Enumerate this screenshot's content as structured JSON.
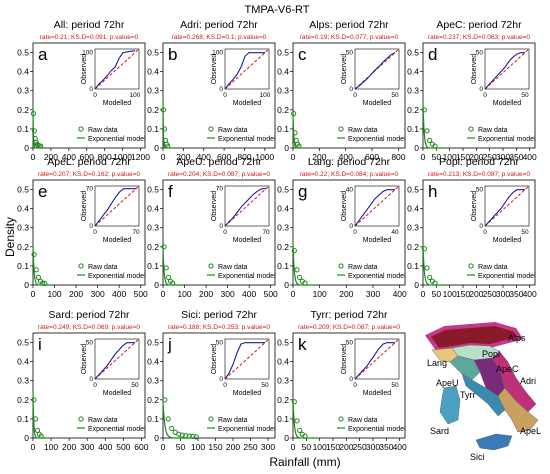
{
  "figure": {
    "title": "TMPA-V6-RT",
    "ylabel": "Density",
    "xlabel": "Rainfall (mm)",
    "inset_xlabel": "Modelled",
    "inset_ylabel": "Observed",
    "legend_raw": "Raw data",
    "legend_model": "Exponential model",
    "colors": {
      "raw": "#1a8a1a",
      "model": "#1a8a1a",
      "observed_line": "#1a1aa0",
      "ref_line": "#cc1a1a",
      "stats": "#cc1a1a"
    }
  },
  "chart_data": [
    {
      "letter": "a",
      "title": "All: period 72hr",
      "stats": "rate=0.21; KS.D=0.091; p.value=0",
      "type": "scatter",
      "xticks": [
        0,
        200,
        400,
        600,
        800,
        1000,
        1200
      ],
      "xlim": [
        0,
        1250
      ],
      "yticks": [
        0,
        0.1,
        0.2,
        0.3,
        0.4,
        0.5
      ],
      "ylim": [
        0,
        0.55
      ],
      "points_x": [
        5,
        15,
        25,
        35,
        45,
        55,
        70,
        85
      ],
      "points_y": [
        0.18,
        0.09,
        0.05,
        0.03,
        0.02,
        0.015,
        0.012,
        0.01
      ],
      "model_rate": 0.21,
      "inset": {
        "xticks": [
          0,
          100
        ],
        "xlim": [
          0,
          110
        ],
        "yticks": [
          0,
          100
        ],
        "ylim": [
          0,
          110
        ],
        "observed_x": [
          0,
          10,
          20,
          30,
          40,
          50,
          60,
          70,
          80,
          90,
          100
        ],
        "observed_y": [
          0,
          14,
          24,
          36,
          50,
          60,
          84,
          100,
          102,
          104,
          105
        ]
      }
    },
    {
      "letter": "b",
      "title": "Adri: period 72hr",
      "stats": "rate=0.268; KS.D=0.1; p.value=0",
      "type": "scatter",
      "xticks": [
        0,
        200,
        400,
        600,
        800,
        1000
      ],
      "xlim": [
        0,
        1100
      ],
      "yticks": [
        0,
        0.1,
        0.2,
        0.3,
        0.4,
        0.5
      ],
      "ylim": [
        0,
        0.55
      ],
      "points_x": [
        5,
        15,
        25,
        35,
        45
      ],
      "points_y": [
        0.2,
        0.1,
        0.04,
        0.02,
        0.01
      ],
      "model_rate": 0.268,
      "inset": {
        "xticks": [
          0,
          100
        ],
        "xlim": [
          0,
          110
        ],
        "yticks": [
          0,
          100
        ],
        "ylim": [
          0,
          110
        ],
        "observed_x": [
          0,
          10,
          20,
          30,
          40,
          50,
          60,
          70,
          80,
          90,
          100
        ],
        "observed_y": [
          0,
          14,
          26,
          40,
          60,
          90,
          100,
          100,
          100,
          100,
          100
        ]
      }
    },
    {
      "letter": "c",
      "title": "Alps: period 72hr",
      "stats": "rate=0.19; KS.D=0.077; p.value=0",
      "type": "scatter",
      "xticks": [
        0,
        200,
        400,
        600,
        800
      ],
      "xlim": [
        0,
        850
      ],
      "yticks": [
        0,
        0.1,
        0.2,
        0.3,
        0.4,
        0.5
      ],
      "ylim": [
        0,
        0.55
      ],
      "points_x": [
        5,
        15,
        25,
        35,
        45
      ],
      "points_y": [
        0.18,
        0.08,
        0.04,
        0.02,
        0.01
      ],
      "model_rate": 0.19,
      "inset": {
        "xticks": [
          0,
          50
        ],
        "xlim": [
          0,
          55
        ],
        "yticks": [
          0,
          50
        ],
        "ylim": [
          0,
          55
        ],
        "observed_x": [
          0,
          5,
          10,
          15,
          20,
          25,
          30,
          35,
          40,
          45,
          50
        ],
        "observed_y": [
          0,
          4,
          9,
          14,
          20,
          26,
          31,
          37,
          42,
          47,
          50
        ]
      }
    },
    {
      "letter": "d",
      "title": "ApeC: period 72hr",
      "stats": "rate=0.237; KS.D=0.063; p.value=0",
      "type": "scatter",
      "xticks": [
        0,
        50,
        100,
        150,
        200,
        250,
        300,
        350,
        400
      ],
      "xlim": [
        0,
        420
      ],
      "yticks": [
        0,
        0.1,
        0.2,
        0.3,
        0.4,
        0.5
      ],
      "ylim": [
        0,
        0.55
      ],
      "points_x": [
        5,
        15,
        25,
        35,
        45
      ],
      "points_y": [
        0.2,
        0.09,
        0.04,
        0.02,
        0.01
      ],
      "model_rate": 0.237,
      "inset": {
        "xticks": [
          0,
          50
        ],
        "xlim": [
          0,
          55
        ],
        "yticks": [
          0,
          50
        ],
        "ylim": [
          0,
          55
        ],
        "observed_x": [
          0,
          5,
          10,
          15,
          20,
          25,
          30,
          35,
          40,
          45,
          50
        ],
        "observed_y": [
          0,
          6,
          12,
          18,
          24,
          30,
          38,
          44,
          48,
          50,
          50
        ]
      }
    },
    {
      "letter": "e",
      "title": "ApeL: period 72hr",
      "stats": "rate=0.207; KS.D=0.162; p.value=0",
      "type": "scatter",
      "xticks": [
        0,
        100,
        200,
        300,
        400,
        500
      ],
      "xlim": [
        0,
        520
      ],
      "yticks": [
        0,
        0.1,
        0.2,
        0.3,
        0.4,
        0.5
      ],
      "ylim": [
        0,
        0.55
      ],
      "points_x": [
        5,
        15,
        25,
        35,
        45,
        55
      ],
      "points_y": [
        0.16,
        0.08,
        0.04,
        0.02,
        0.01,
        0.008
      ],
      "model_rate": 0.207,
      "inset": {
        "xticks": [
          0,
          70
        ],
        "xlim": [
          0,
          75
        ],
        "yticks": [
          0,
          70
        ],
        "ylim": [
          0,
          75
        ],
        "observed_x": [
          0,
          7,
          14,
          21,
          28,
          35,
          42,
          49,
          56,
          63,
          70
        ],
        "observed_y": [
          0,
          10,
          20,
          30,
          42,
          54,
          64,
          70,
          70,
          70,
          70
        ]
      }
    },
    {
      "letter": "f",
      "title": "ApeU: period 72hr",
      "stats": "rate=0.204; KS.D=0.087; p.value=0",
      "type": "scatter",
      "xticks": [
        0,
        100,
        200,
        300,
        400,
        500
      ],
      "xlim": [
        0,
        520
      ],
      "yticks": [
        0,
        0.1,
        0.2,
        0.3,
        0.4,
        0.5
      ],
      "ylim": [
        0,
        0.55
      ],
      "points_x": [
        5,
        15,
        25,
        35,
        45
      ],
      "points_y": [
        0.2,
        0.09,
        0.04,
        0.02,
        0.01
      ],
      "model_rate": 0.204,
      "inset": {
        "xticks": [
          0,
          70
        ],
        "xlim": [
          0,
          75
        ],
        "yticks": [
          0,
          70
        ],
        "ylim": [
          0,
          75
        ],
        "observed_x": [
          0,
          7,
          14,
          21,
          28,
          35,
          42,
          49,
          56,
          63,
          70
        ],
        "observed_y": [
          0,
          8,
          16,
          26,
          36,
          44,
          52,
          60,
          66,
          70,
          70
        ]
      }
    },
    {
      "letter": "g",
      "title": "Lang: period 72hr",
      "stats": "rate=0.22; KS.D=0.084; p.value=0",
      "type": "scatter",
      "xticks": [
        0,
        100,
        200,
        300,
        400
      ],
      "xlim": [
        0,
        420
      ],
      "yticks": [
        0,
        0.1,
        0.2,
        0.3,
        0.4,
        0.5
      ],
      "ylim": [
        0,
        0.55
      ],
      "points_x": [
        5,
        15,
        25,
        35,
        45
      ],
      "points_y": [
        0.18,
        0.08,
        0.04,
        0.02,
        0.01
      ],
      "model_rate": 0.22,
      "inset": {
        "xticks": [
          0,
          40
        ],
        "xlim": [
          0,
          44
        ],
        "yticks": [
          0,
          40
        ],
        "ylim": [
          0,
          44
        ],
        "observed_x": [
          0,
          4,
          8,
          12,
          16,
          20,
          24,
          28,
          32,
          36,
          40
        ],
        "observed_y": [
          0,
          6,
          12,
          18,
          24,
          30,
          34,
          38,
          40,
          40,
          40
        ]
      }
    },
    {
      "letter": "h",
      "title": "Popl: period 72hr",
      "stats": "rate=0.213; KS.D=0.087; p.value=0",
      "type": "scatter",
      "xticks": [
        0,
        50,
        100,
        150,
        200,
        250,
        300,
        350,
        400
      ],
      "xlim": [
        0,
        420
      ],
      "yticks": [
        0,
        0.1,
        0.2,
        0.3,
        0.4,
        0.5
      ],
      "ylim": [
        0,
        0.55
      ],
      "points_x": [
        5,
        15,
        25,
        35,
        45
      ],
      "points_y": [
        0.19,
        0.09,
        0.04,
        0.02,
        0.01
      ],
      "model_rate": 0.213,
      "inset": {
        "xticks": [
          0,
          50
        ],
        "xlim": [
          0,
          55
        ],
        "yticks": [
          0,
          50
        ],
        "ylim": [
          0,
          55
        ],
        "observed_x": [
          0,
          5,
          10,
          15,
          20,
          25,
          30,
          35,
          40,
          45,
          50
        ],
        "observed_y": [
          0,
          6,
          12,
          18,
          24,
          32,
          40,
          46,
          50,
          50,
          50
        ]
      }
    },
    {
      "letter": "i",
      "title": "Sard: period 72hr",
      "stats": "rate=0.249; KS.D=0.069; p.value=0",
      "type": "scatter",
      "xticks": [
        0,
        100,
        200,
        300,
        400,
        500,
        600
      ],
      "xlim": [
        0,
        620
      ],
      "yticks": [
        0,
        0.1,
        0.2,
        0.3,
        0.4,
        0.5
      ],
      "ylim": [
        0,
        0.55
      ],
      "points_x": [
        5,
        15,
        25,
        35,
        45
      ],
      "points_y": [
        0.2,
        0.1,
        0.04,
        0.02,
        0.01
      ],
      "model_rate": 0.249,
      "inset": {
        "xticks": [
          0,
          50
        ],
        "xlim": [
          0,
          55
        ],
        "yticks": [
          0,
          50
        ],
        "ylim": [
          0,
          55
        ],
        "observed_x": [
          0,
          5,
          10,
          15,
          20,
          25,
          30,
          35,
          40,
          45,
          50
        ],
        "observed_y": [
          0,
          6,
          12,
          18,
          26,
          34,
          40,
          46,
          50,
          50,
          50
        ]
      }
    },
    {
      "letter": "j",
      "title": "Sici: period 72hr",
      "stats": "rate=0.188; KS.D=0.253; p.value=0",
      "type": "scatter",
      "xticks": [
        0,
        50,
        100,
        150,
        200,
        250,
        300
      ],
      "xlim": [
        0,
        320
      ],
      "yticks": [
        0,
        0.1,
        0.2,
        0.3,
        0.4,
        0.5
      ],
      "ylim": [
        0,
        0.55
      ],
      "points_x": [
        5,
        15,
        25,
        35,
        45,
        55,
        65,
        75,
        85,
        95
      ],
      "points_y": [
        0.2,
        0.1,
        0.05,
        0.03,
        0.02,
        0.015,
        0.012,
        0.01,
        0.008,
        0.006
      ],
      "model_rate": 0.188,
      "inset": {
        "xticks": [
          0,
          50
        ],
        "xlim": [
          0,
          55
        ],
        "yticks": [
          0,
          50
        ],
        "ylim": [
          0,
          55
        ],
        "observed_x": [
          0,
          5,
          10,
          15,
          20,
          25,
          30,
          35,
          40,
          45,
          50
        ],
        "observed_y": [
          0,
          8,
          20,
          36,
          48,
          50,
          50,
          50,
          50,
          50,
          50
        ]
      }
    },
    {
      "letter": "k",
      "title": "Tyrr: period 72hr",
      "stats": "rate=0.209; KS.D=0.087; p.value=0",
      "type": "scatter",
      "xticks": [
        0,
        50,
        100,
        150,
        200,
        250,
        300,
        350,
        400
      ],
      "xlim": [
        0,
        420
      ],
      "yticks": [
        0,
        0.1,
        0.2,
        0.3,
        0.4,
        0.5
      ],
      "ylim": [
        0,
        0.55
      ],
      "points_x": [
        5,
        15,
        25,
        35,
        45
      ],
      "points_y": [
        0.19,
        0.09,
        0.04,
        0.02,
        0.01
      ],
      "model_rate": 0.209,
      "inset": {
        "xticks": [
          0,
          50
        ],
        "xlim": [
          0,
          55
        ],
        "yticks": [
          0,
          50
        ],
        "ylim": [
          0,
          55
        ],
        "observed_x": [
          0,
          5,
          10,
          15,
          20,
          25,
          30,
          35,
          40,
          45,
          50
        ],
        "observed_y": [
          0,
          6,
          12,
          18,
          26,
          34,
          42,
          48,
          50,
          50,
          50
        ]
      }
    }
  ],
  "map": {
    "labels": [
      "Alps",
      "Popl",
      "Lang",
      "ApeC",
      "Adri",
      "ApeU",
      "Tyrr",
      "Sard",
      "Sici",
      "ApeL"
    ],
    "region_colors": {
      "Alps": "#8a1a2a",
      "Alps_border": "#c23a8a",
      "Popl": "#b8e0c8",
      "Lang": "#e8c878",
      "ApeC": "#7a2a7a",
      "Adri": "#c0307a",
      "ApeU": "#5aa8a0",
      "Tyrr": "#3a8ab0",
      "Sard": "#4aa0c0",
      "Sici": "#3a7ab8",
      "ApeL": "#c8a060"
    }
  }
}
